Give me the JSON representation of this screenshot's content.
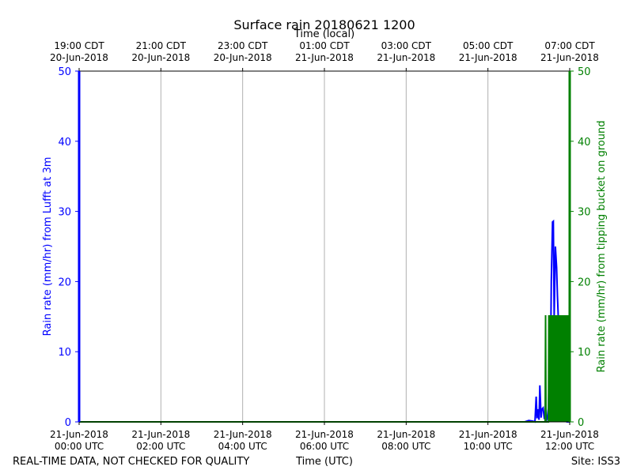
{
  "chart_data": {
    "type": "line",
    "title": "Surface rain 20180621 1200",
    "top_axis_label": "Time (local)",
    "top_ticks": [
      {
        "x": 0,
        "line1": "19:00 CDT",
        "line2": "20-Jun-2018"
      },
      {
        "x": 2,
        "line1": "21:00 CDT",
        "line2": "20-Jun-2018"
      },
      {
        "x": 4,
        "line1": "23:00 CDT",
        "line2": "20-Jun-2018"
      },
      {
        "x": 6,
        "line1": "01:00 CDT",
        "line2": "21-Jun-2018"
      },
      {
        "x": 8,
        "line1": "03:00 CDT",
        "line2": "21-Jun-2018"
      },
      {
        "x": 10,
        "line1": "05:00 CDT",
        "line2": "21-Jun-2018"
      },
      {
        "x": 12,
        "line1": "07:00 CDT",
        "line2": "21-Jun-2018"
      }
    ],
    "bottom_axis_label": "Time (UTC)",
    "bottom_ticks": [
      {
        "x": 0,
        "line1": "21-Jun-2018",
        "line2": "00:00 UTC"
      },
      {
        "x": 2,
        "line1": "21-Jun-2018",
        "line2": "02:00 UTC"
      },
      {
        "x": 4,
        "line1": "21-Jun-2018",
        "line2": "04:00 UTC"
      },
      {
        "x": 6,
        "line1": "21-Jun-2018",
        "line2": "06:00 UTC"
      },
      {
        "x": 8,
        "line1": "21-Jun-2018",
        "line2": "08:00 UTC"
      },
      {
        "x": 10,
        "line1": "21-Jun-2018",
        "line2": "10:00 UTC"
      },
      {
        "x": 12,
        "line1": "21-Jun-2018",
        "line2": "12:00 UTC"
      }
    ],
    "xlim": [
      0,
      12
    ],
    "ylabel_left": "Rain rate (mm/hr) from Lufft at 3m",
    "ylabel_right": "Rain rate (mm/hr) from tipping bucket on ground",
    "ylim_left": [
      0,
      50
    ],
    "ylim_right": [
      0,
      50
    ],
    "yticks": [
      0,
      10,
      20,
      30,
      40,
      50
    ],
    "grid": "vertical",
    "series": [
      {
        "axis": "left",
        "color": "#0000ff",
        "x": [
          0,
          10.8,
          10.9,
          11.0,
          11.1,
          11.15,
          11.18,
          11.2,
          11.22,
          11.25,
          11.27,
          11.3,
          11.32,
          11.35,
          11.38,
          11.4,
          11.43,
          11.45,
          11.48,
          11.5,
          11.52,
          11.55,
          11.58,
          11.6,
          11.62,
          11.65,
          11.68,
          11.7,
          11.72,
          11.74,
          11.76,
          11.78,
          11.8,
          11.83,
          11.85,
          11.87,
          11.9,
          11.93,
          11.95,
          11.98,
          12.0
        ],
        "y": [
          0,
          0,
          0,
          0.2,
          0.1,
          0,
          3.6,
          0.5,
          1.8,
          0.3,
          5.2,
          0.6,
          1.8,
          2.0,
          0.4,
          0.8,
          0.2,
          0.5,
          2.0,
          8.0,
          1.5,
          20.0,
          28.5,
          28.6,
          15.0,
          25.0,
          22.0,
          18.0,
          15.0,
          12.0,
          10.0,
          7.0,
          14.5,
          13.0,
          0.5,
          0.3,
          0.1,
          0,
          0,
          0,
          0
        ]
      },
      {
        "axis": "right",
        "color": "#008000",
        "x": [
          0,
          11.38,
          11.4,
          11.41,
          11.42,
          11.48,
          11.49,
          11.5,
          11.51,
          11.52,
          11.53,
          11.54,
          11.55,
          11.56,
          11.58,
          11.59,
          11.6,
          11.61,
          11.62,
          11.63,
          11.64,
          11.65,
          11.66,
          11.68,
          11.69,
          11.7,
          11.71,
          11.72,
          11.73,
          11.74,
          11.75,
          11.76,
          11.77,
          11.78,
          11.79,
          11.8,
          11.81,
          11.82,
          11.83,
          11.84,
          11.85,
          11.86,
          11.87,
          11.88,
          11.89,
          11.9,
          11.91,
          11.92,
          11.93,
          11.94,
          11.95,
          11.96,
          11.97,
          11.98,
          11.99,
          12.0
        ],
        "y": [
          0,
          0,
          0,
          15.2,
          0,
          0,
          15.2,
          0,
          15.2,
          0,
          15.2,
          0,
          15.2,
          0,
          15.2,
          0,
          15.2,
          0,
          15.2,
          0,
          15.2,
          0,
          15.2,
          0,
          15.2,
          0,
          15.2,
          0,
          15.2,
          0,
          15.2,
          0,
          15.2,
          0,
          15.2,
          0,
          15.2,
          0,
          15.2,
          0,
          15.2,
          0,
          15.2,
          0,
          15.2,
          0,
          15.2,
          0,
          15.2,
          0,
          15.2,
          0,
          15.2,
          0,
          15.2,
          50
        ]
      }
    ]
  },
  "footer": {
    "left": "REAL-TIME DATA, NOT CHECKED FOR QUALITY",
    "center": "Time (UTC)",
    "right": "Site: ISS3"
  },
  "colors": {
    "left_axis": "#0000ff",
    "right_axis": "#008000",
    "grid": "#b0b0b0"
  }
}
